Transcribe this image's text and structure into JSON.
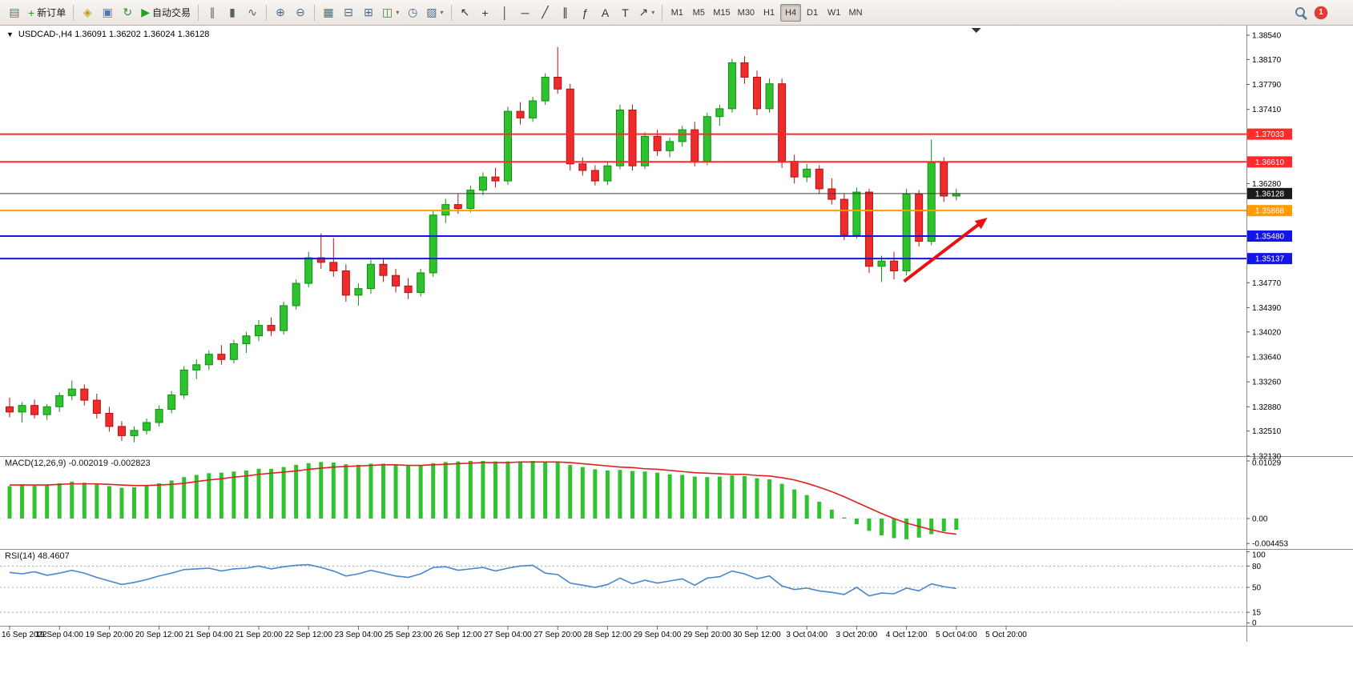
{
  "toolbar": {
    "notification_count": "1",
    "caret_glyph": "▾",
    "timeframe_active": "H4",
    "groups": [
      {
        "name": "chart-file",
        "items": [
          {
            "name": "new-chart",
            "glyph": "▤",
            "color": "#4f7f4f"
          },
          {
            "name": "new-order",
            "glyph": "+",
            "color": "#18a018",
            "label": "新订单"
          }
        ]
      },
      {
        "name": "panels",
        "items": [
          {
            "name": "market-watch",
            "glyph": "◈",
            "color": "#c79b22"
          },
          {
            "name": "data-window",
            "glyph": "▣",
            "color": "#4a7ab5"
          },
          {
            "name": "strategy-navigator",
            "glyph": "↻",
            "color": "#2f8f2f"
          },
          {
            "name": "auto-trading",
            "glyph": "▶",
            "color": "#22a022",
            "label": "自动交易"
          }
        ]
      },
      {
        "name": "chart-type",
        "items": [
          {
            "name": "ohlc-bars",
            "glyph": "∥",
            "color": "#55635f"
          },
          {
            "name": "candlesticks",
            "glyph": "▮",
            "color": "#55635f"
          },
          {
            "name": "line-chart",
            "glyph": "∿",
            "color": "#55635f"
          }
        ]
      },
      {
        "name": "zoom",
        "items": [
          {
            "name": "zoom-in",
            "glyph": "⊕",
            "color": "#4a6a8a"
          },
          {
            "name": "zoom-out",
            "glyph": "⊖",
            "color": "#4a6a8a"
          }
        ]
      },
      {
        "name": "windows",
        "items": [
          {
            "name": "tile-windows",
            "glyph": "▦",
            "color": "#4a6a8a"
          },
          {
            "name": "arrange-windows",
            "glyph": "⊟",
            "color": "#4a6a8a"
          },
          {
            "name": "cascade-windows",
            "glyph": "⊞",
            "color": "#4a6a8a"
          },
          {
            "name": "new-chart-window",
            "glyph": "◫",
            "color": "#2f8f2f",
            "dropdown": true
          },
          {
            "name": "period-selector",
            "glyph": "◷",
            "color": "#4a6a8a"
          },
          {
            "name": "templates",
            "glyph": "▨",
            "color": "#4a6a8a",
            "dropdown": true
          }
        ]
      },
      {
        "name": "objects",
        "items": [
          {
            "name": "cursor",
            "glyph": "↖",
            "color": "#333333"
          },
          {
            "name": "crosshair",
            "glyph": "+",
            "color": "#333333"
          },
          {
            "name": "vertical-line",
            "glyph": "│",
            "color": "#333333"
          },
          {
            "name": "horizontal-line",
            "glyph": "─",
            "color": "#333333"
          },
          {
            "name": "trendline",
            "glyph": "╱",
            "color": "#333333"
          },
          {
            "name": "equidistant-channel",
            "glyph": "∥",
            "color": "#333333"
          },
          {
            "name": "fibonacci",
            "glyph": "ƒ",
            "color": "#333333"
          },
          {
            "name": "text",
            "glyph": "A",
            "color": "#333333"
          },
          {
            "name": "text-label",
            "glyph": "T",
            "color": "#333333"
          },
          {
            "name": "arrows",
            "glyph": "↗",
            "color": "#333333",
            "dropdown": true
          }
        ]
      },
      {
        "name": "timeframes",
        "type": "timeframes",
        "items": [
          {
            "label": "M1"
          },
          {
            "label": "M5"
          },
          {
            "label": "M15"
          },
          {
            "label": "M30"
          },
          {
            "label": "H1"
          },
          {
            "label": "H4"
          },
          {
            "label": "D1"
          },
          {
            "label": "W1"
          },
          {
            "label": "MN"
          }
        ]
      }
    ]
  },
  "chart": {
    "title": "USDCAD-,H4 1.36091 1.36202 1.36024 1.36128",
    "dropdown_caret": "▼",
    "macd_label": "MACD(12,26,9) -0.002019 -0.002823",
    "rsi_label": "RSI(14) 48.4607"
  },
  "chart_data": {
    "type": "candlestick",
    "symbol": "USDCAD-",
    "period": "H4",
    "current_bar": {
      "open": "1.36091",
      "high": "1.36202",
      "low": "1.36024",
      "close": "1.36128"
    },
    "colors": {
      "up_fill": "#2ec22e",
      "up_stroke": "#0f8f0f",
      "down_fill": "#ee2c2c",
      "down_stroke": "#b31212",
      "macd_histogram": "#2fc32f",
      "macd_signal": "#e02020",
      "rsi_line": "#4a86c8"
    },
    "price_axis": {
      "ylim": [
        1.32128,
        1.38686
      ],
      "ticks": [
        "1.38540",
        "1.38170",
        "1.37790",
        "1.37410",
        "1.36280",
        "1.34770",
        "1.34390",
        "1.34020",
        "1.33640",
        "1.33260",
        "1.32880",
        "1.32510",
        "1.32130"
      ],
      "badges": [
        {
          "text": "1.37033",
          "value": 1.37033,
          "color": "#ff2a2a"
        },
        {
          "text": "1.36610",
          "value": 1.3661,
          "color": "#ff2a2a"
        },
        {
          "text": "1.36128",
          "value": 1.36128,
          "color": "#1a1a1a"
        },
        {
          "text": "1.35868",
          "value": 1.35868,
          "color": "#ff9c00"
        },
        {
          "text": "1.35480",
          "value": 1.3548,
          "color": "#1414e6"
        },
        {
          "text": "1.35137",
          "value": 1.35137,
          "color": "#1414e6"
        }
      ]
    },
    "hlines": [
      {
        "value": 1.37033,
        "color": "#ff2a2a",
        "width": 2
      },
      {
        "value": 1.3661,
        "color": "#ff2a2a",
        "width": 2
      },
      {
        "value": 1.36128,
        "color": "#3a3a3a",
        "width": 1
      },
      {
        "value": 1.35868,
        "color": "#ff9c00",
        "width": 2
      },
      {
        "value": 1.3548,
        "color": "#1414e6",
        "width": 2
      },
      {
        "value": 1.35137,
        "color": "#1414e6",
        "width": 2
      }
    ],
    "annotations": [
      {
        "type": "arrow",
        "from": {
          "index": 71.8,
          "price": 1.3479
        },
        "to": {
          "index": 78.5,
          "price": 1.3576
        },
        "color": "#e81212",
        "width": 4
      }
    ],
    "shift_marker_index": 77.6,
    "candles": [
      [
        1.3288,
        1.3302,
        1.3272,
        1.328
      ],
      [
        1.328,
        1.3295,
        1.3264,
        1.329
      ],
      [
        1.329,
        1.3299,
        1.327,
        1.3276
      ],
      [
        1.3276,
        1.3292,
        1.3268,
        1.3288
      ],
      [
        1.3288,
        1.331,
        1.328,
        1.3305
      ],
      [
        1.3305,
        1.3328,
        1.3298,
        1.3315
      ],
      [
        1.3315,
        1.3322,
        1.329,
        1.3298
      ],
      [
        1.3298,
        1.3308,
        1.327,
        1.3278
      ],
      [
        1.3278,
        1.3288,
        1.325,
        1.3258
      ],
      [
        1.3258,
        1.3266,
        1.3236,
        1.3244
      ],
      [
        1.3244,
        1.3258,
        1.3234,
        1.3252
      ],
      [
        1.3252,
        1.327,
        1.3246,
        1.3264
      ],
      [
        1.3264,
        1.329,
        1.3258,
        1.3284
      ],
      [
        1.3284,
        1.3312,
        1.3278,
        1.3306
      ],
      [
        1.3306,
        1.335,
        1.33,
        1.3344
      ],
      [
        1.3344,
        1.336,
        1.333,
        1.3352
      ],
      [
        1.3352,
        1.3374,
        1.3344,
        1.3368
      ],
      [
        1.3368,
        1.3382,
        1.3352,
        1.336
      ],
      [
        1.336,
        1.339,
        1.3354,
        1.3384
      ],
      [
        1.3384,
        1.3402,
        1.337,
        1.3396
      ],
      [
        1.3396,
        1.342,
        1.3388,
        1.3412
      ],
      [
        1.3412,
        1.3424,
        1.3396,
        1.3404
      ],
      [
        1.3404,
        1.3448,
        1.3398,
        1.3442
      ],
      [
        1.3442,
        1.3482,
        1.3436,
        1.3476
      ],
      [
        1.3476,
        1.3524,
        1.347,
        1.3515
      ],
      [
        1.3515,
        1.3552,
        1.3498,
        1.3508
      ],
      [
        1.3508,
        1.3545,
        1.3486,
        1.3495
      ],
      [
        1.3495,
        1.3505,
        1.3448,
        1.3458
      ],
      [
        1.3458,
        1.3476,
        1.3442,
        1.3468
      ],
      [
        1.3468,
        1.3512,
        1.346,
        1.3505
      ],
      [
        1.3505,
        1.3515,
        1.3478,
        1.3488
      ],
      [
        1.3488,
        1.3498,
        1.3462,
        1.3472
      ],
      [
        1.3472,
        1.3484,
        1.3452,
        1.3462
      ],
      [
        1.3462,
        1.3498,
        1.3456,
        1.3492
      ],
      [
        1.3492,
        1.3588,
        1.3486,
        1.358
      ],
      [
        1.358,
        1.3605,
        1.3568,
        1.3596
      ],
      [
        1.3596,
        1.3612,
        1.3582,
        1.359
      ],
      [
        1.359,
        1.3625,
        1.3584,
        1.3618
      ],
      [
        1.3618,
        1.3645,
        1.361,
        1.3638
      ],
      [
        1.3638,
        1.3652,
        1.3622,
        1.3632
      ],
      [
        1.3632,
        1.3745,
        1.3626,
        1.3738
      ],
      [
        1.3738,
        1.3752,
        1.3718,
        1.3728
      ],
      [
        1.3728,
        1.376,
        1.3722,
        1.3754
      ],
      [
        1.3754,
        1.3796,
        1.3748,
        1.379
      ],
      [
        1.379,
        1.3836,
        1.3765,
        1.3772
      ],
      [
        1.3772,
        1.378,
        1.3648,
        1.3658
      ],
      [
        1.3658,
        1.3668,
        1.364,
        1.3648
      ],
      [
        1.3648,
        1.3656,
        1.3625,
        1.3632
      ],
      [
        1.3632,
        1.366,
        1.3626,
        1.3655
      ],
      [
        1.3655,
        1.3748,
        1.365,
        1.374
      ],
      [
        1.374,
        1.3748,
        1.3648,
        1.3655
      ],
      [
        1.3655,
        1.3706,
        1.365,
        1.37
      ],
      [
        1.37,
        1.371,
        1.367,
        1.3678
      ],
      [
        1.3678,
        1.3698,
        1.3668,
        1.3692
      ],
      [
        1.3692,
        1.3716,
        1.3684,
        1.371
      ],
      [
        1.371,
        1.3722,
        1.3654,
        1.3662
      ],
      [
        1.3662,
        1.3736,
        1.3656,
        1.373
      ],
      [
        1.373,
        1.3748,
        1.3716,
        1.3742
      ],
      [
        1.3742,
        1.3818,
        1.3736,
        1.3812
      ],
      [
        1.3812,
        1.3822,
        1.378,
        1.379
      ],
      [
        1.379,
        1.38,
        1.3732,
        1.3742
      ],
      [
        1.3742,
        1.3788,
        1.3736,
        1.378
      ],
      [
        1.378,
        1.3788,
        1.3652,
        1.3662
      ],
      [
        1.3662,
        1.3672,
        1.3628,
        1.3638
      ],
      [
        1.3638,
        1.3658,
        1.363,
        1.365
      ],
      [
        1.365,
        1.3656,
        1.3612,
        1.362
      ],
      [
        1.362,
        1.3636,
        1.3596,
        1.3604
      ],
      [
        1.3604,
        1.3612,
        1.3542,
        1.355
      ],
      [
        1.355,
        1.3622,
        1.3544,
        1.3615
      ],
      [
        1.3615,
        1.362,
        1.3492,
        1.3502
      ],
      [
        1.3502,
        1.3518,
        1.3478,
        1.351
      ],
      [
        1.351,
        1.3524,
        1.3482,
        1.3495
      ],
      [
        1.3495,
        1.362,
        1.3488,
        1.3612
      ],
      [
        1.3612,
        1.3618,
        1.3532,
        1.354
      ],
      [
        1.354,
        1.3695,
        1.3534,
        1.366
      ],
      [
        1.366,
        1.3668,
        1.36,
        1.3609
      ],
      [
        1.36091,
        1.36202,
        1.36024,
        1.36128
      ]
    ],
    "indicators": {
      "macd": {
        "name": "MACD(12,26,9)",
        "main_value": "-0.002019",
        "signal_value": "-0.002823",
        "ylim": [
          -0.00543,
          0.01115
        ],
        "axis_ticks": [
          {
            "text": "0.01029",
            "value": 0.01029
          },
          {
            "text": "0.00",
            "value": 0
          },
          {
            "text": "-0.004453",
            "value": -0.004453
          }
        ],
        "histogram": [
          0.0058,
          0.0061,
          0.0059,
          0.006,
          0.0063,
          0.0066,
          0.0064,
          0.0061,
          0.0058,
          0.0055,
          0.0056,
          0.0059,
          0.0063,
          0.0068,
          0.0074,
          0.0078,
          0.0081,
          0.0082,
          0.0084,
          0.0086,
          0.0089,
          0.0089,
          0.0092,
          0.0096,
          0.0099,
          0.0101,
          0.01,
          0.0097,
          0.0096,
          0.0098,
          0.0098,
          0.0096,
          0.0094,
          0.0095,
          0.0099,
          0.0101,
          0.0102,
          0.0103,
          0.0103,
          0.0102,
          0.0102,
          0.0102,
          0.0103,
          0.0102,
          0.01,
          0.0096,
          0.0092,
          0.0088,
          0.0086,
          0.0087,
          0.0085,
          0.0084,
          0.0082,
          0.0079,
          0.0078,
          0.0075,
          0.0074,
          0.0075,
          0.0077,
          0.0076,
          0.0072,
          0.007,
          0.0062,
          0.0052,
          0.0042,
          0.003,
          0.0016,
          0.0002,
          -0.001,
          -0.0022,
          -0.003,
          -0.0035,
          -0.0037,
          -0.0034,
          -0.0028,
          -0.0023,
          -0.002
        ],
        "signal": [
          0.006,
          0.006,
          0.006,
          0.006,
          0.0061,
          0.0062,
          0.0062,
          0.0062,
          0.0061,
          0.006,
          0.0059,
          0.0059,
          0.006,
          0.0061,
          0.0063,
          0.0066,
          0.0069,
          0.0071,
          0.0074,
          0.0076,
          0.0079,
          0.0081,
          0.0083,
          0.0085,
          0.0088,
          0.009,
          0.0092,
          0.0093,
          0.0094,
          0.0095,
          0.0096,
          0.0096,
          0.0095,
          0.0095,
          0.0096,
          0.0097,
          0.0098,
          0.0099,
          0.01,
          0.01,
          0.01,
          0.0101,
          0.0101,
          0.0101,
          0.0101,
          0.01,
          0.0098,
          0.0096,
          0.0094,
          0.0092,
          0.0091,
          0.0089,
          0.0088,
          0.0086,
          0.0084,
          0.0082,
          0.0081,
          0.008,
          0.0079,
          0.0079,
          0.0077,
          0.0076,
          0.0073,
          0.0069,
          0.0063,
          0.0056,
          0.0048,
          0.0039,
          0.0029,
          0.0019,
          0.0009,
          0.0,
          -0.0008,
          -0.0014,
          -0.002,
          -0.0025,
          -0.0028
        ]
      },
      "rsi": {
        "name": "RSI(14)",
        "value": "48.4607",
        "ylim": [
          -4,
          104
        ],
        "levels": [
          80,
          50,
          15
        ],
        "axis_ticks": [
          {
            "text": "100",
            "value": 100
          },
          {
            "text": "80",
            "value": 80
          },
          {
            "text": "50",
            "value": 50
          },
          {
            "text": "15",
            "value": 15
          },
          {
            "text": "0",
            "value": 0
          }
        ],
        "values": [
          71,
          69,
          72,
          67,
          70,
          74,
          70,
          64,
          59,
          54,
          57,
          61,
          66,
          70,
          75,
          76,
          77,
          73,
          76,
          77,
          80,
          76,
          79,
          81,
          82,
          78,
          73,
          66,
          69,
          74,
          70,
          66,
          64,
          69,
          78,
          79,
          74,
          76,
          78,
          73,
          77,
          80,
          81,
          70,
          68,
          56,
          53,
          50,
          54,
          63,
          55,
          60,
          56,
          59,
          62,
          53,
          63,
          65,
          73,
          69,
          62,
          66,
          52,
          47,
          49,
          45,
          43,
          40,
          50,
          38,
          42,
          41,
          49,
          45,
          55,
          51,
          48.46
        ]
      }
    },
    "bars_per_label": 4,
    "time_labels": [
      "16 Sep 2022",
      "19 Sep 04:00",
      "19 Sep 20:00",
      "20 Sep 12:00",
      "21 Sep 04:00",
      "21 Sep 20:00",
      "22 Sep 12:00",
      "23 Sep 04:00",
      "25 Sep 23:00",
      "26 Sep 12:00",
      "27 Sep 04:00",
      "27 Sep 20:00",
      "28 Sep 12:00",
      "29 Sep 04:00",
      "29 Sep 20:00",
      "30 Sep 12:00",
      "3 Oct 04:00",
      "3 Oct 20:00",
      "4 Oct 12:00",
      "5 Oct 04:00",
      "5 Oct 20:00"
    ]
  }
}
